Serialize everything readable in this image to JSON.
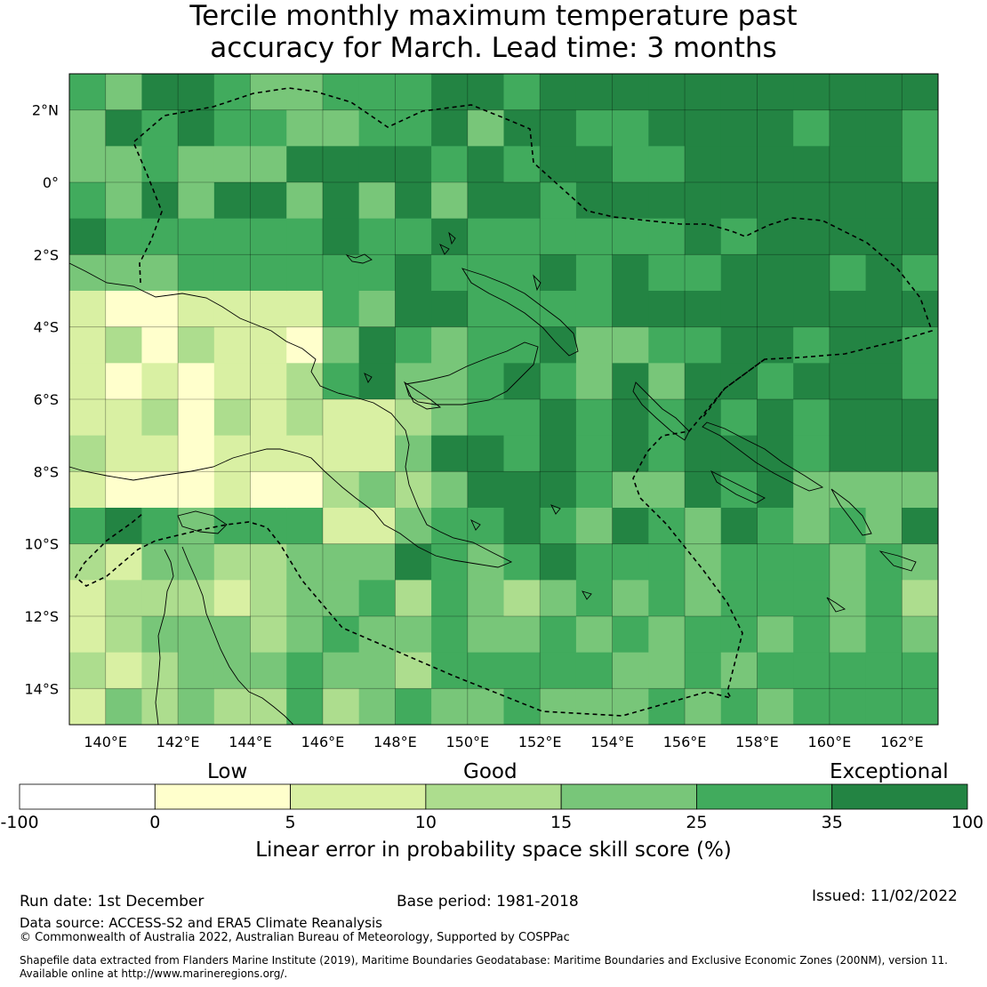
{
  "title": {
    "line1": "Tercile monthly maximum temperature past",
    "line2": "accuracy for March. Lead time: 3 months"
  },
  "map": {
    "lat_ticks": [
      "2°N",
      "0°",
      "2°S",
      "4°S",
      "6°S",
      "8°S",
      "10°S",
      "12°S",
      "14°S"
    ],
    "lon_ticks": [
      "140°E",
      "142°E",
      "144°E",
      "146°E",
      "148°E",
      "150°E",
      "152°E",
      "154°E",
      "156°E",
      "158°E",
      "160°E",
      "162°E"
    ],
    "lon_range": [
      139,
      163
    ],
    "lat_range": [
      -15,
      3
    ],
    "grid_lines": true
  },
  "colorbar": {
    "category_labels": [
      "Low",
      "Good",
      "Exceptional"
    ],
    "tick_labels": [
      "-100",
      "0",
      "5",
      "10",
      "15",
      "25",
      "35",
      "100"
    ],
    "colors": [
      "#ffffff",
      "#ffffcc",
      "#d9f0a3",
      "#addd8e",
      "#78c679",
      "#41ab5d",
      "#238443"
    ],
    "title": "Linear error in probability space skill score (%)"
  },
  "footer": {
    "run_date": "Run date: 1st December",
    "base_period": "Base period: 1981-2018",
    "issued": "Issued: 11/02/2022",
    "data_source": "Data source: ACCESS-S2 and ERA5 Climate Reanalysis",
    "copyright": "© Commonwealth of Australia 2022, Australian Bureau of Meteorology, Supported by COSPPac",
    "shapefile_line1": "Shapefile data extracted from Flanders Marine Institute (2019), Maritime Boundaries Geodatabase: Maritime Boundaries and Exclusive Economic Zones (200NM), version 11.",
    "shapefile_line2": "Available online at http://www.marineregions.org/."
  }
}
